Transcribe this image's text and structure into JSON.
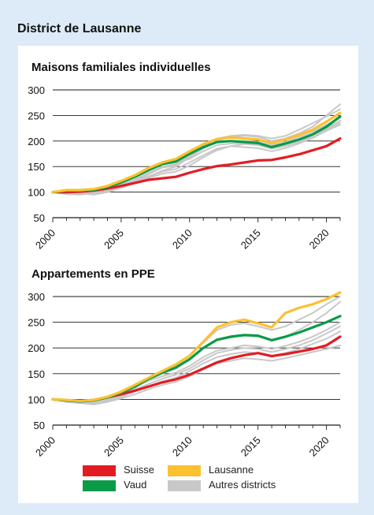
{
  "page": {
    "title": "District de Lausanne"
  },
  "legend": {
    "items": [
      {
        "label": "Suisse",
        "color": "#e31c23"
      },
      {
        "label": "Lausanne",
        "color": "#fdc02f"
      },
      {
        "label": "Vaud",
        "color": "#0a9a48"
      },
      {
        "label": "Autres districts",
        "color": "#c8c8c8"
      }
    ]
  },
  "chart_data": [
    {
      "type": "line",
      "title": "Maisons familiales individuelles",
      "xlabel": "",
      "ylabel": "",
      "xlim": [
        2000,
        2021
      ],
      "ylim": [
        50,
        300
      ],
      "yticks": [
        50,
        100,
        150,
        200,
        250,
        300
      ],
      "xticks": [
        2000,
        2005,
        2010,
        2015,
        2020
      ],
      "grid": true,
      "series": [
        {
          "name": "Autres districts",
          "color": "#c8c8c8",
          "x": [
            2000,
            2001,
            2002,
            2003,
            2004,
            2005,
            2006,
            2007,
            2008,
            2009,
            2010,
            2011,
            2012,
            2013,
            2014,
            2015,
            2016,
            2017,
            2018,
            2019,
            2020,
            2021
          ],
          "y": [
            100,
            101,
            97,
            95,
            100,
            108,
            118,
            130,
            142,
            150,
            168,
            185,
            200,
            208,
            210,
            208,
            200,
            205,
            215,
            228,
            250,
            272
          ]
        },
        {
          "name": "Autres districts",
          "color": "#c8c8c8",
          "x": [
            2000,
            2001,
            2002,
            2003,
            2004,
            2005,
            2006,
            2007,
            2008,
            2009,
            2010,
            2011,
            2012,
            2013,
            2014,
            2015,
            2016,
            2017,
            2018,
            2019,
            2020,
            2021
          ],
          "y": [
            100,
            99,
            98,
            100,
            105,
            112,
            122,
            135,
            148,
            152,
            170,
            190,
            205,
            210,
            212,
            210,
            205,
            210,
            222,
            235,
            248,
            262
          ]
        },
        {
          "name": "Autres districts",
          "color": "#c8c8c8",
          "x": [
            2000,
            2001,
            2002,
            2003,
            2004,
            2005,
            2006,
            2007,
            2008,
            2009,
            2010,
            2011,
            2012,
            2013,
            2014,
            2015,
            2016,
            2017,
            2018,
            2019,
            2020,
            2021
          ],
          "y": [
            100,
            98,
            100,
            103,
            108,
            115,
            125,
            138,
            150,
            155,
            172,
            188,
            198,
            200,
            200,
            198,
            192,
            198,
            208,
            218,
            232,
            245
          ]
        },
        {
          "name": "Autres districts",
          "color": "#c8c8c8",
          "x": [
            2000,
            2001,
            2002,
            2003,
            2004,
            2005,
            2006,
            2007,
            2008,
            2009,
            2010,
            2011,
            2012,
            2013,
            2014,
            2015,
            2016,
            2017,
            2018,
            2019,
            2020,
            2021
          ],
          "y": [
            100,
            96,
            95,
            98,
            102,
            110,
            118,
            128,
            136,
            140,
            152,
            168,
            182,
            190,
            194,
            192,
            185,
            190,
            198,
            208,
            222,
            236
          ]
        },
        {
          "name": "Autres districts",
          "color": "#c8c8c8",
          "x": [
            2000,
            2001,
            2002,
            2003,
            2004,
            2005,
            2006,
            2007,
            2008,
            2009,
            2010,
            2011,
            2012,
            2013,
            2014,
            2015,
            2016,
            2017,
            2018,
            2019,
            2020,
            2021
          ],
          "y": [
            100,
            100,
            102,
            104,
            110,
            118,
            130,
            145,
            155,
            158,
            165,
            180,
            192,
            195,
            196,
            194,
            188,
            192,
            200,
            212,
            225,
            240
          ]
        },
        {
          "name": "Autres districts",
          "color": "#c8c8c8",
          "x": [
            2000,
            2001,
            2002,
            2003,
            2004,
            2005,
            2006,
            2007,
            2008,
            2009,
            2010,
            2011,
            2012,
            2013,
            2014,
            2015,
            2016,
            2017,
            2018,
            2019,
            2020,
            2021
          ],
          "y": [
            100,
            102,
            101,
            99,
            103,
            111,
            121,
            131,
            140,
            145,
            158,
            172,
            185,
            190,
            188,
            186,
            180,
            186,
            195,
            206,
            220,
            232
          ]
        },
        {
          "name": "Suisse",
          "color": "#e31c23",
          "x": [
            2000,
            2001,
            2002,
            2003,
            2004,
            2005,
            2006,
            2007,
            2008,
            2009,
            2010,
            2011,
            2012,
            2013,
            2014,
            2015,
            2016,
            2017,
            2018,
            2019,
            2020,
            2021
          ],
          "y": [
            100,
            100,
            101,
            103,
            107,
            112,
            118,
            124,
            127,
            130,
            138,
            145,
            151,
            154,
            158,
            162,
            163,
            168,
            174,
            182,
            190,
            205
          ]
        },
        {
          "name": "Vaud",
          "color": "#0a9a48",
          "x": [
            2000,
            2001,
            2002,
            2003,
            2004,
            2005,
            2006,
            2007,
            2008,
            2009,
            2010,
            2011,
            2012,
            2013,
            2014,
            2015,
            2016,
            2017,
            2018,
            2019,
            2020,
            2021
          ],
          "y": [
            100,
            103,
            103,
            104,
            110,
            119,
            130,
            143,
            155,
            160,
            175,
            188,
            198,
            200,
            198,
            196,
            188,
            195,
            203,
            213,
            228,
            248
          ]
        },
        {
          "name": "Lausanne",
          "color": "#fdc02f",
          "x": [
            2000,
            2001,
            2002,
            2003,
            2004,
            2005,
            2006,
            2007,
            2008,
            2009,
            2010,
            2011,
            2012,
            2013,
            2014,
            2015,
            2016,
            2017,
            2018,
            2019,
            2020,
            2021
          ],
          "y": [
            100,
            104,
            104,
            106,
            112,
            122,
            133,
            147,
            158,
            165,
            180,
            194,
            204,
            207,
            205,
            203,
            196,
            203,
            212,
            222,
            238,
            255
          ]
        }
      ]
    },
    {
      "type": "line",
      "title": "Appartements en PPE",
      "xlabel": "",
      "ylabel": "",
      "xlim": [
        2000,
        2021
      ],
      "ylim": [
        50,
        300
      ],
      "yticks": [
        50,
        100,
        150,
        200,
        250,
        300
      ],
      "xticks": [
        2000,
        2005,
        2010,
        2015,
        2020
      ],
      "grid": true,
      "series": [
        {
          "name": "Autres districts",
          "color": "#c8c8c8",
          "x": [
            2000,
            2001,
            2002,
            2003,
            2004,
            2005,
            2006,
            2007,
            2008,
            2009,
            2010,
            2011,
            2012,
            2013,
            2014,
            2015,
            2016,
            2017,
            2018,
            2019,
            2020,
            2021
          ],
          "y": [
            100,
            97,
            95,
            93,
            100,
            110,
            122,
            138,
            150,
            160,
            178,
            200,
            215,
            220,
            225,
            222,
            215,
            222,
            235,
            250,
            268,
            290
          ]
        },
        {
          "name": "Autres districts",
          "color": "#c8c8c8",
          "x": [
            2000,
            2001,
            2002,
            2003,
            2004,
            2005,
            2006,
            2007,
            2008,
            2009,
            2010,
            2011,
            2012,
            2013,
            2014,
            2015,
            2016,
            2017,
            2018,
            2019,
            2020,
            2021
          ],
          "y": [
            100,
            96,
            94,
            95,
            102,
            112,
            124,
            136,
            145,
            152,
            165,
            182,
            195,
            200,
            205,
            203,
            198,
            204,
            212,
            222,
            235,
            250
          ]
        },
        {
          "name": "Autres districts",
          "color": "#c8c8c8",
          "x": [
            2000,
            2001,
            2002,
            2003,
            2004,
            2005,
            2006,
            2007,
            2008,
            2009,
            2010,
            2011,
            2012,
            2013,
            2014,
            2015,
            2016,
            2017,
            2018,
            2019,
            2020,
            2021
          ],
          "y": [
            100,
            98,
            96,
            92,
            97,
            105,
            115,
            126,
            135,
            142,
            155,
            170,
            182,
            188,
            192,
            190,
            185,
            190,
            198,
            208,
            218,
            232
          ]
        },
        {
          "name": "Autres districts",
          "color": "#c8c8c8",
          "x": [
            2000,
            2001,
            2002,
            2003,
            2004,
            2005,
            2006,
            2007,
            2008,
            2009,
            2010,
            2011,
            2012,
            2013,
            2014,
            2015,
            2016,
            2017,
            2018,
            2019,
            2020,
            2021
          ],
          "y": [
            100,
            95,
            93,
            90,
            95,
            102,
            110,
            120,
            128,
            134,
            145,
            158,
            170,
            175,
            180,
            178,
            175,
            180,
            186,
            192,
            198,
            205
          ]
        },
        {
          "name": "Autres districts",
          "color": "#c8c8c8",
          "x": [
            2000,
            2001,
            2002,
            2003,
            2004,
            2005,
            2006,
            2007,
            2008,
            2009,
            2010,
            2011,
            2012,
            2013,
            2014,
            2015,
            2016,
            2017,
            2018,
            2019,
            2020,
            2021
          ],
          "y": [
            100,
            99,
            97,
            96,
            104,
            115,
            128,
            142,
            155,
            165,
            185,
            210,
            235,
            245,
            248,
            242,
            235,
            242,
            255,
            268,
            285,
            300
          ]
        },
        {
          "name": "Autres districts",
          "color": "#c8c8c8",
          "x": [
            2000,
            2001,
            2002,
            2003,
            2004,
            2005,
            2006,
            2007,
            2008,
            2009,
            2010,
            2011,
            2012,
            2013,
            2014,
            2015,
            2016,
            2017,
            2018,
            2019,
            2020,
            2021
          ],
          "y": [
            100,
            97,
            96,
            94,
            99,
            108,
            118,
            130,
            140,
            148,
            160,
            176,
            190,
            196,
            200,
            198,
            192,
            198,
            205,
            215,
            228,
            242
          ]
        },
        {
          "name": "Suisse",
          "color": "#e31c23",
          "x": [
            2000,
            2001,
            2002,
            2003,
            2004,
            2005,
            2006,
            2007,
            2008,
            2009,
            2010,
            2011,
            2012,
            2013,
            2014,
            2015,
            2016,
            2017,
            2018,
            2019,
            2020,
            2021
          ],
          "y": [
            100,
            98,
            97,
            99,
            104,
            110,
            117,
            125,
            133,
            139,
            148,
            160,
            172,
            180,
            186,
            190,
            184,
            188,
            193,
            198,
            205,
            222
          ]
        },
        {
          "name": "Vaud",
          "color": "#0a9a48",
          "x": [
            2000,
            2001,
            2002,
            2003,
            2004,
            2005,
            2006,
            2007,
            2008,
            2009,
            2010,
            2011,
            2012,
            2013,
            2014,
            2015,
            2016,
            2017,
            2018,
            2019,
            2020,
            2021
          ],
          "y": [
            100,
            98,
            96,
            98,
            104,
            113,
            125,
            140,
            152,
            162,
            178,
            200,
            216,
            222,
            225,
            224,
            215,
            222,
            230,
            240,
            250,
            262
          ]
        },
        {
          "name": "Lausanne",
          "color": "#fdc02f",
          "x": [
            2000,
            2001,
            2002,
            2003,
            2004,
            2005,
            2006,
            2007,
            2008,
            2009,
            2010,
            2011,
            2012,
            2013,
            2014,
            2015,
            2016,
            2017,
            2018,
            2019,
            2020,
            2021
          ],
          "y": [
            100,
            99,
            97,
            99,
            105,
            115,
            128,
            142,
            155,
            168,
            185,
            212,
            240,
            250,
            255,
            248,
            240,
            268,
            278,
            285,
            295,
            308
          ]
        }
      ]
    }
  ]
}
